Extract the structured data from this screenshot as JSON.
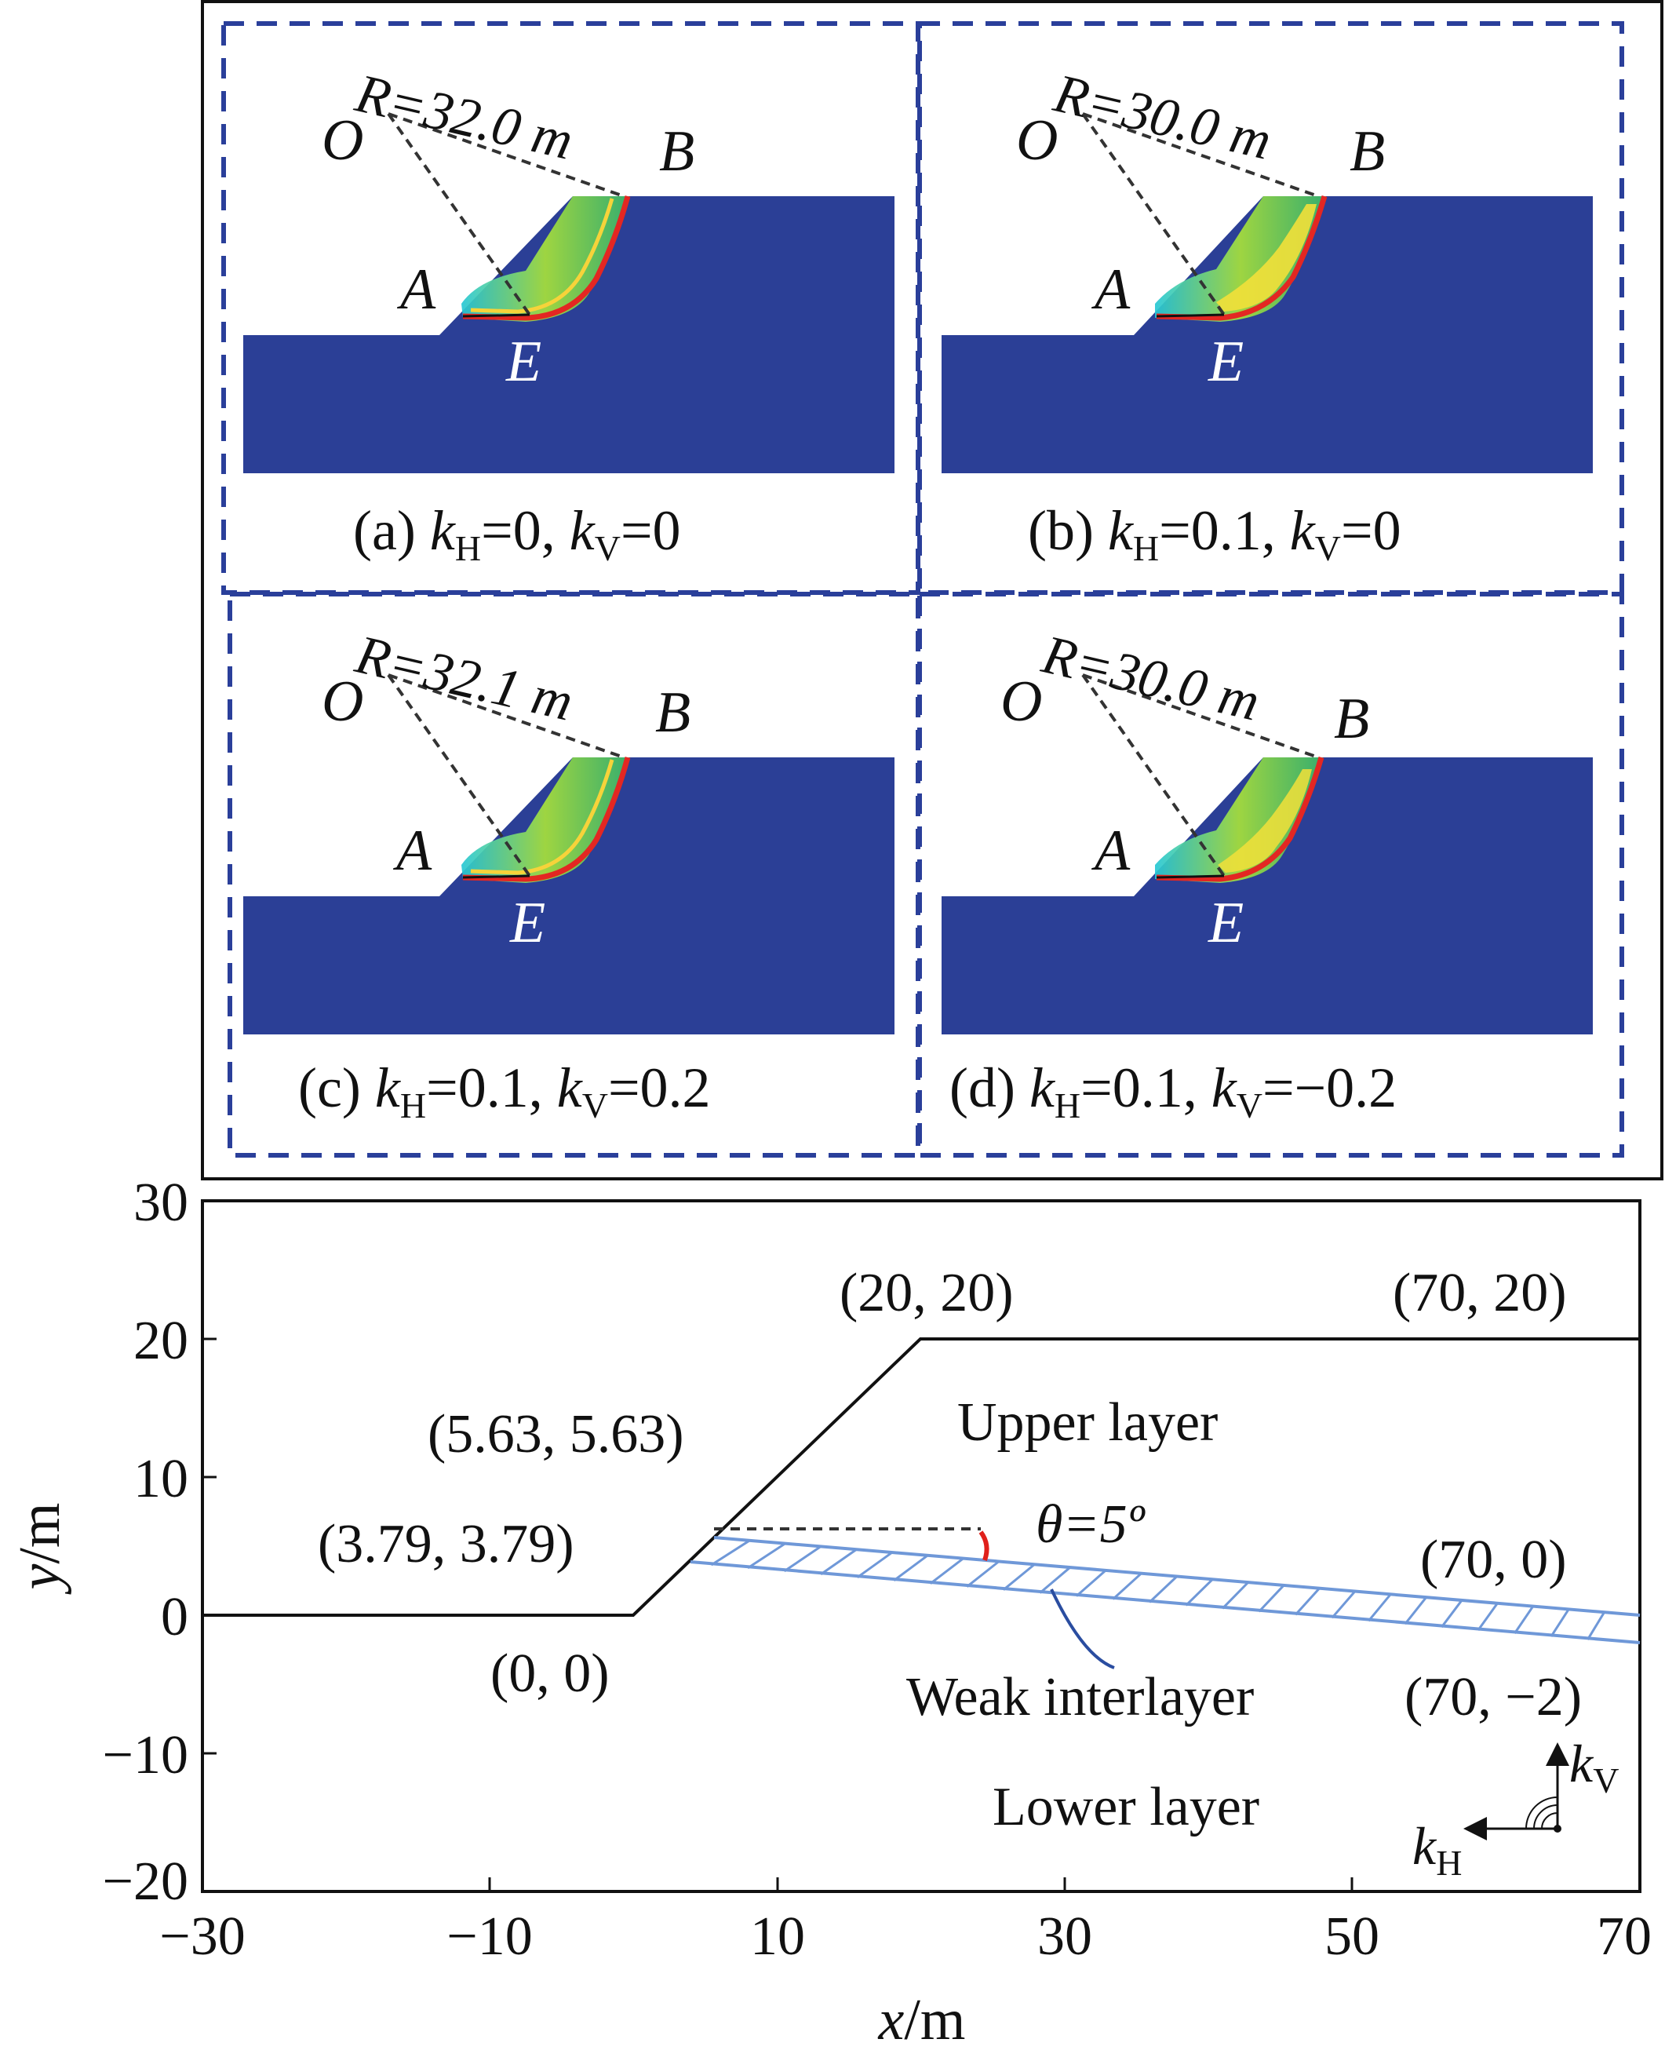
{
  "panels": [
    {
      "id": "a",
      "radius_label": "R=32.0 m",
      "caption": "(a) ",
      "kH": "=0,",
      "kV": "=0"
    },
    {
      "id": "b",
      "radius_label": "R=30.0 m",
      "caption": "(b) ",
      "kH": "=0.1,",
      "kV": "=0"
    },
    {
      "id": "c",
      "radius_label": "R=32.1 m",
      "caption": "(c) ",
      "kH": "=0.1,",
      "kV": "=0.2"
    },
    {
      "id": "d",
      "radius_label": "R=30.0 m",
      "caption": "(d) ",
      "kH": "=0.1,",
      "kV": "=−0.2"
    }
  ],
  "point_labels": {
    "O": "O",
    "A": "A",
    "B": "B",
    "E": "E"
  },
  "k_symbol": "k",
  "sub_H": "H",
  "sub_V": "V",
  "diagram": {
    "xlabel_var": "x",
    "xlabel_unit": "/m",
    "ylabel_var": "y",
    "ylabel_unit": "/m",
    "xticks": [
      "−30",
      "−10",
      "10",
      "30",
      "50",
      "70"
    ],
    "yticks": [
      "30",
      "20",
      "10",
      "0",
      "−10",
      "−20"
    ],
    "xlim": [
      -30,
      70
    ],
    "ylim": [
      -20,
      30
    ],
    "coords": {
      "p00": "(0, 0)",
      "p379": "(3.79, 3.79)",
      "p563": "(5.63, 5.63)",
      "p2020": "(20, 20)",
      "p7020": "(70, 20)",
      "p700": "(70, 0)",
      "p70m2": "(70, −2)"
    },
    "upper_layer": "Upper layer",
    "lower_layer": "Lower layer",
    "weak_interlayer": "Weak interlayer",
    "theta_label": "θ=5º",
    "colors": {
      "panel_border": "#2a3f9a",
      "slope_fill": "#2b3f96",
      "weak_layer": "#6f98d8",
      "angle_arc": "#e0201b"
    }
  }
}
